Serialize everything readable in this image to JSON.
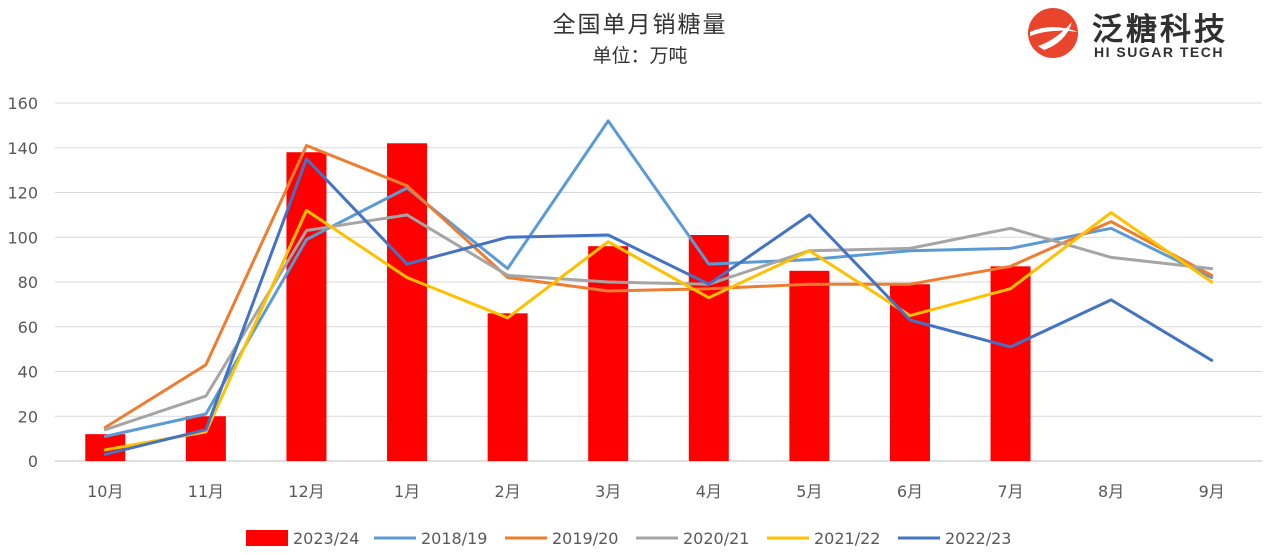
{
  "chart_data": {
    "type": "bar",
    "title": "全国单月销糖量",
    "subtitle": "单位：万吨",
    "categories": [
      "10月",
      "11月",
      "12月",
      "1月",
      "2月",
      "3月",
      "4月",
      "5月",
      "6月",
      "7月",
      "8月",
      "9月"
    ],
    "ylim": [
      0,
      160
    ],
    "yticks": [
      "0",
      "20",
      "40",
      "60",
      "80",
      "100",
      "120",
      "140",
      "160"
    ],
    "grid": true,
    "legend": "bottom",
    "bar_series": {
      "name": "2023/24",
      "color": "#ff0000",
      "values": [
        12,
        20,
        138,
        142,
        66,
        96,
        101,
        85,
        79,
        87,
        null,
        null
      ]
    },
    "line_series": [
      {
        "name": "2018/19",
        "color": "#5b9bd5",
        "values": [
          11,
          21,
          99,
          122,
          86,
          152,
          88,
          90,
          94,
          95,
          104,
          82
        ]
      },
      {
        "name": "2019/20",
        "color": "#ed7d31",
        "values": [
          15,
          43,
          141,
          123,
          82,
          76,
          77,
          79,
          79,
          87,
          107,
          83
        ]
      },
      {
        "name": "2020/21",
        "color": "#a5a5a5",
        "values": [
          14,
          29,
          103,
          110,
          83,
          80,
          79,
          94,
          95,
          104,
          91,
          86
        ]
      },
      {
        "name": "2021/22",
        "color": "#ffc000",
        "values": [
          5,
          13,
          112,
          82,
          64,
          98,
          73,
          94,
          65,
          77,
          111,
          80
        ]
      },
      {
        "name": "2022/23",
        "color": "#4472c4",
        "values": [
          3,
          14,
          135,
          88,
          100,
          101,
          79,
          110,
          63,
          51,
          72,
          45
        ]
      }
    ]
  },
  "logo": {
    "name_cn": "泛糖科技",
    "name_en": "HI SUGAR TECH"
  }
}
